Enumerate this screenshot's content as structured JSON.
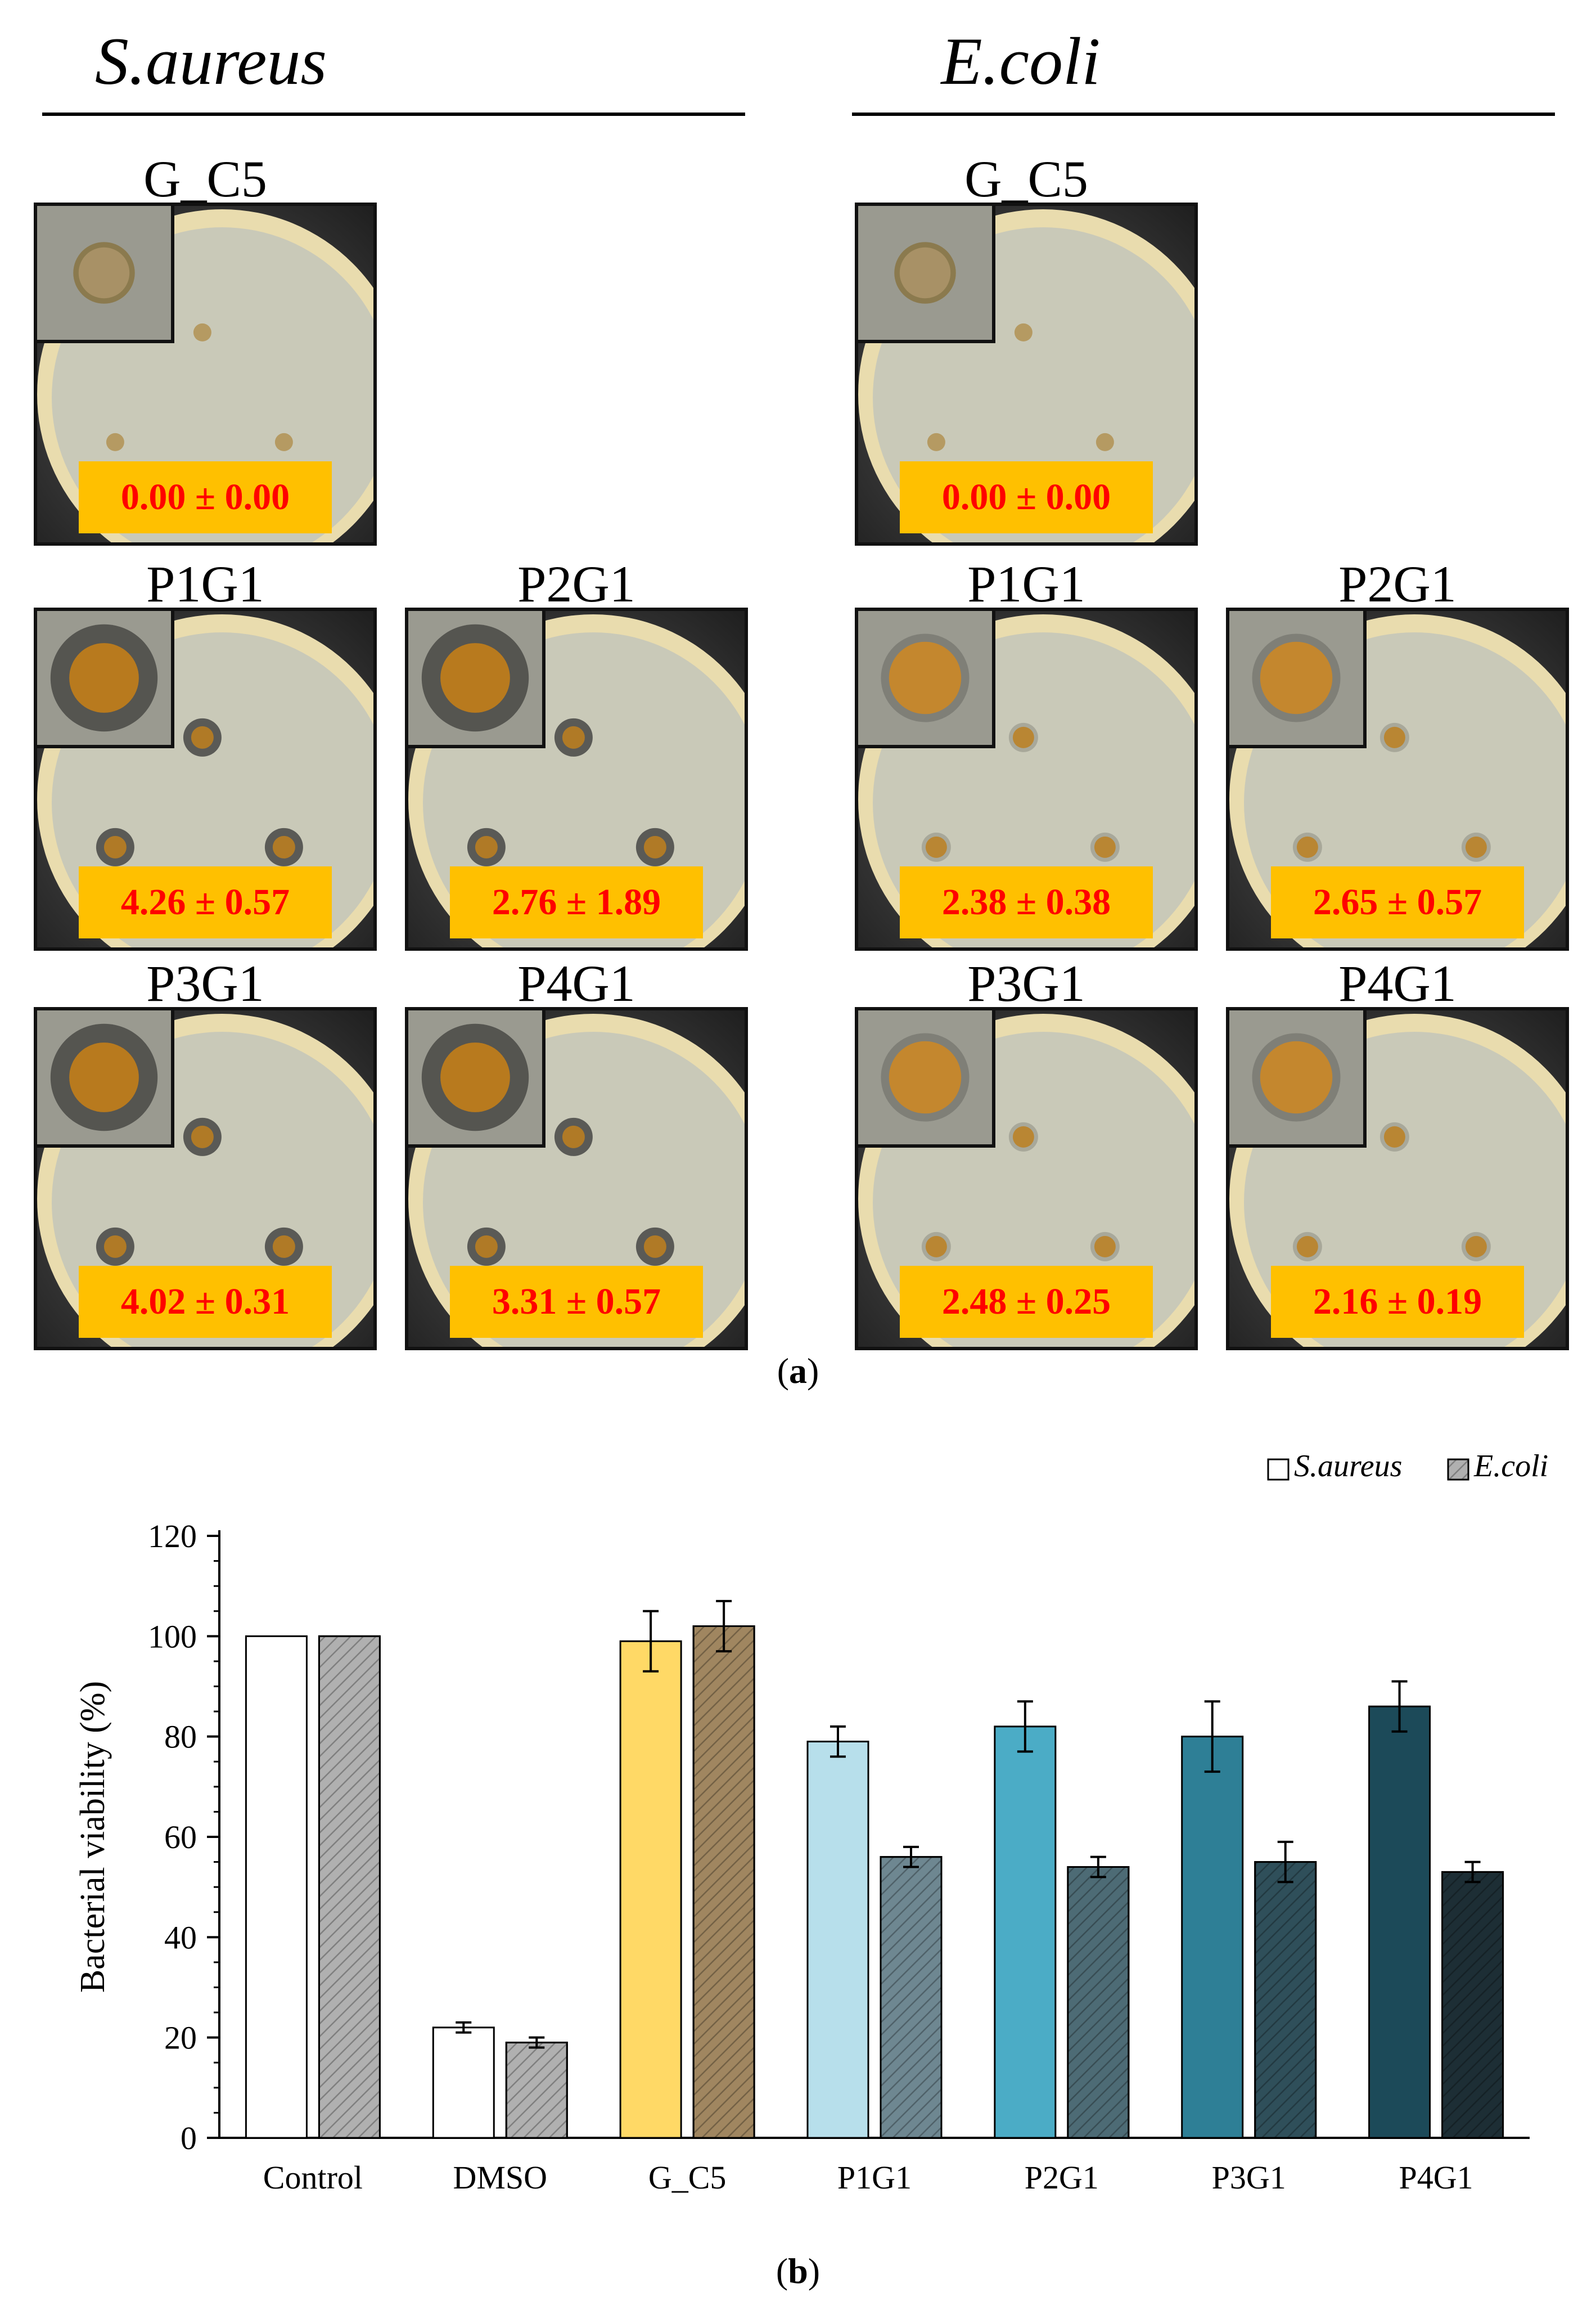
{
  "panel_a": {
    "caption_open": "(",
    "caption_letter": "a",
    "caption_close": ")",
    "species": [
      {
        "name": "S.aureus",
        "plates": [
          {
            "label": "G_C5",
            "value": "0.00 ± 0.00",
            "wells": "none"
          },
          {
            "label": "P1G1",
            "value": "4.26 ± 0.57",
            "wells": "halo"
          },
          {
            "label": "P2G1",
            "value": "2.76 ± 1.89",
            "wells": "halo"
          },
          {
            "label": "P3G1",
            "value": "4.02 ± 0.31",
            "wells": "halo"
          },
          {
            "label": "P4G1",
            "value": "3.31 ± 0.57",
            "wells": "halo"
          }
        ]
      },
      {
        "name": "E.coli",
        "plates": [
          {
            "label": "G_C5",
            "value": "0.00 ± 0.00",
            "wells": "none"
          },
          {
            "label": "P1G1",
            "value": "2.38 ± 0.38",
            "wells": "light"
          },
          {
            "label": "P2G1",
            "value": "2.65 ± 0.57",
            "wells": "light"
          },
          {
            "label": "P3G1",
            "value": "2.48 ± 0.25",
            "wells": "light"
          },
          {
            "label": "P4G1",
            "value": "2.16 ± 0.19",
            "wells": "light"
          }
        ]
      }
    ]
  },
  "panel_b": {
    "caption_open": "(",
    "caption_letter": "b",
    "caption_close": ")"
  },
  "chart_data": {
    "type": "bar",
    "title": "",
    "xlabel": "",
    "ylabel": "Bacterial viability (%)",
    "ylim": [
      0,
      120
    ],
    "yticks": [
      0,
      20,
      40,
      60,
      80,
      100,
      120
    ],
    "categories": [
      "Control",
      "DMSO",
      "G_C5",
      "P1G1",
      "P2G1",
      "P3G1",
      "P4G1"
    ],
    "legend_position": "top-right",
    "series": [
      {
        "name": "S.aureus",
        "values": [
          100,
          22,
          99,
          79,
          82,
          80,
          86
        ],
        "errors": [
          0,
          1,
          6,
          3,
          5,
          7,
          5
        ],
        "colors": [
          "#ffffff",
          "#ffffff",
          "#ffd966",
          "#b7dfeb",
          "#4bacc6",
          "#2e7f96",
          "#1c4a59"
        ]
      },
      {
        "name": "E.coli",
        "values": [
          100,
          19,
          102,
          56,
          54,
          55,
          53
        ],
        "errors": [
          0,
          1,
          5,
          2,
          2,
          4,
          2
        ],
        "colors": [
          "#b0b0b0",
          "#b0b0b0",
          "#a08660",
          "#6e8791",
          "#4d6b75",
          "#2f4f5a",
          "#1d2e35"
        ]
      }
    ]
  }
}
